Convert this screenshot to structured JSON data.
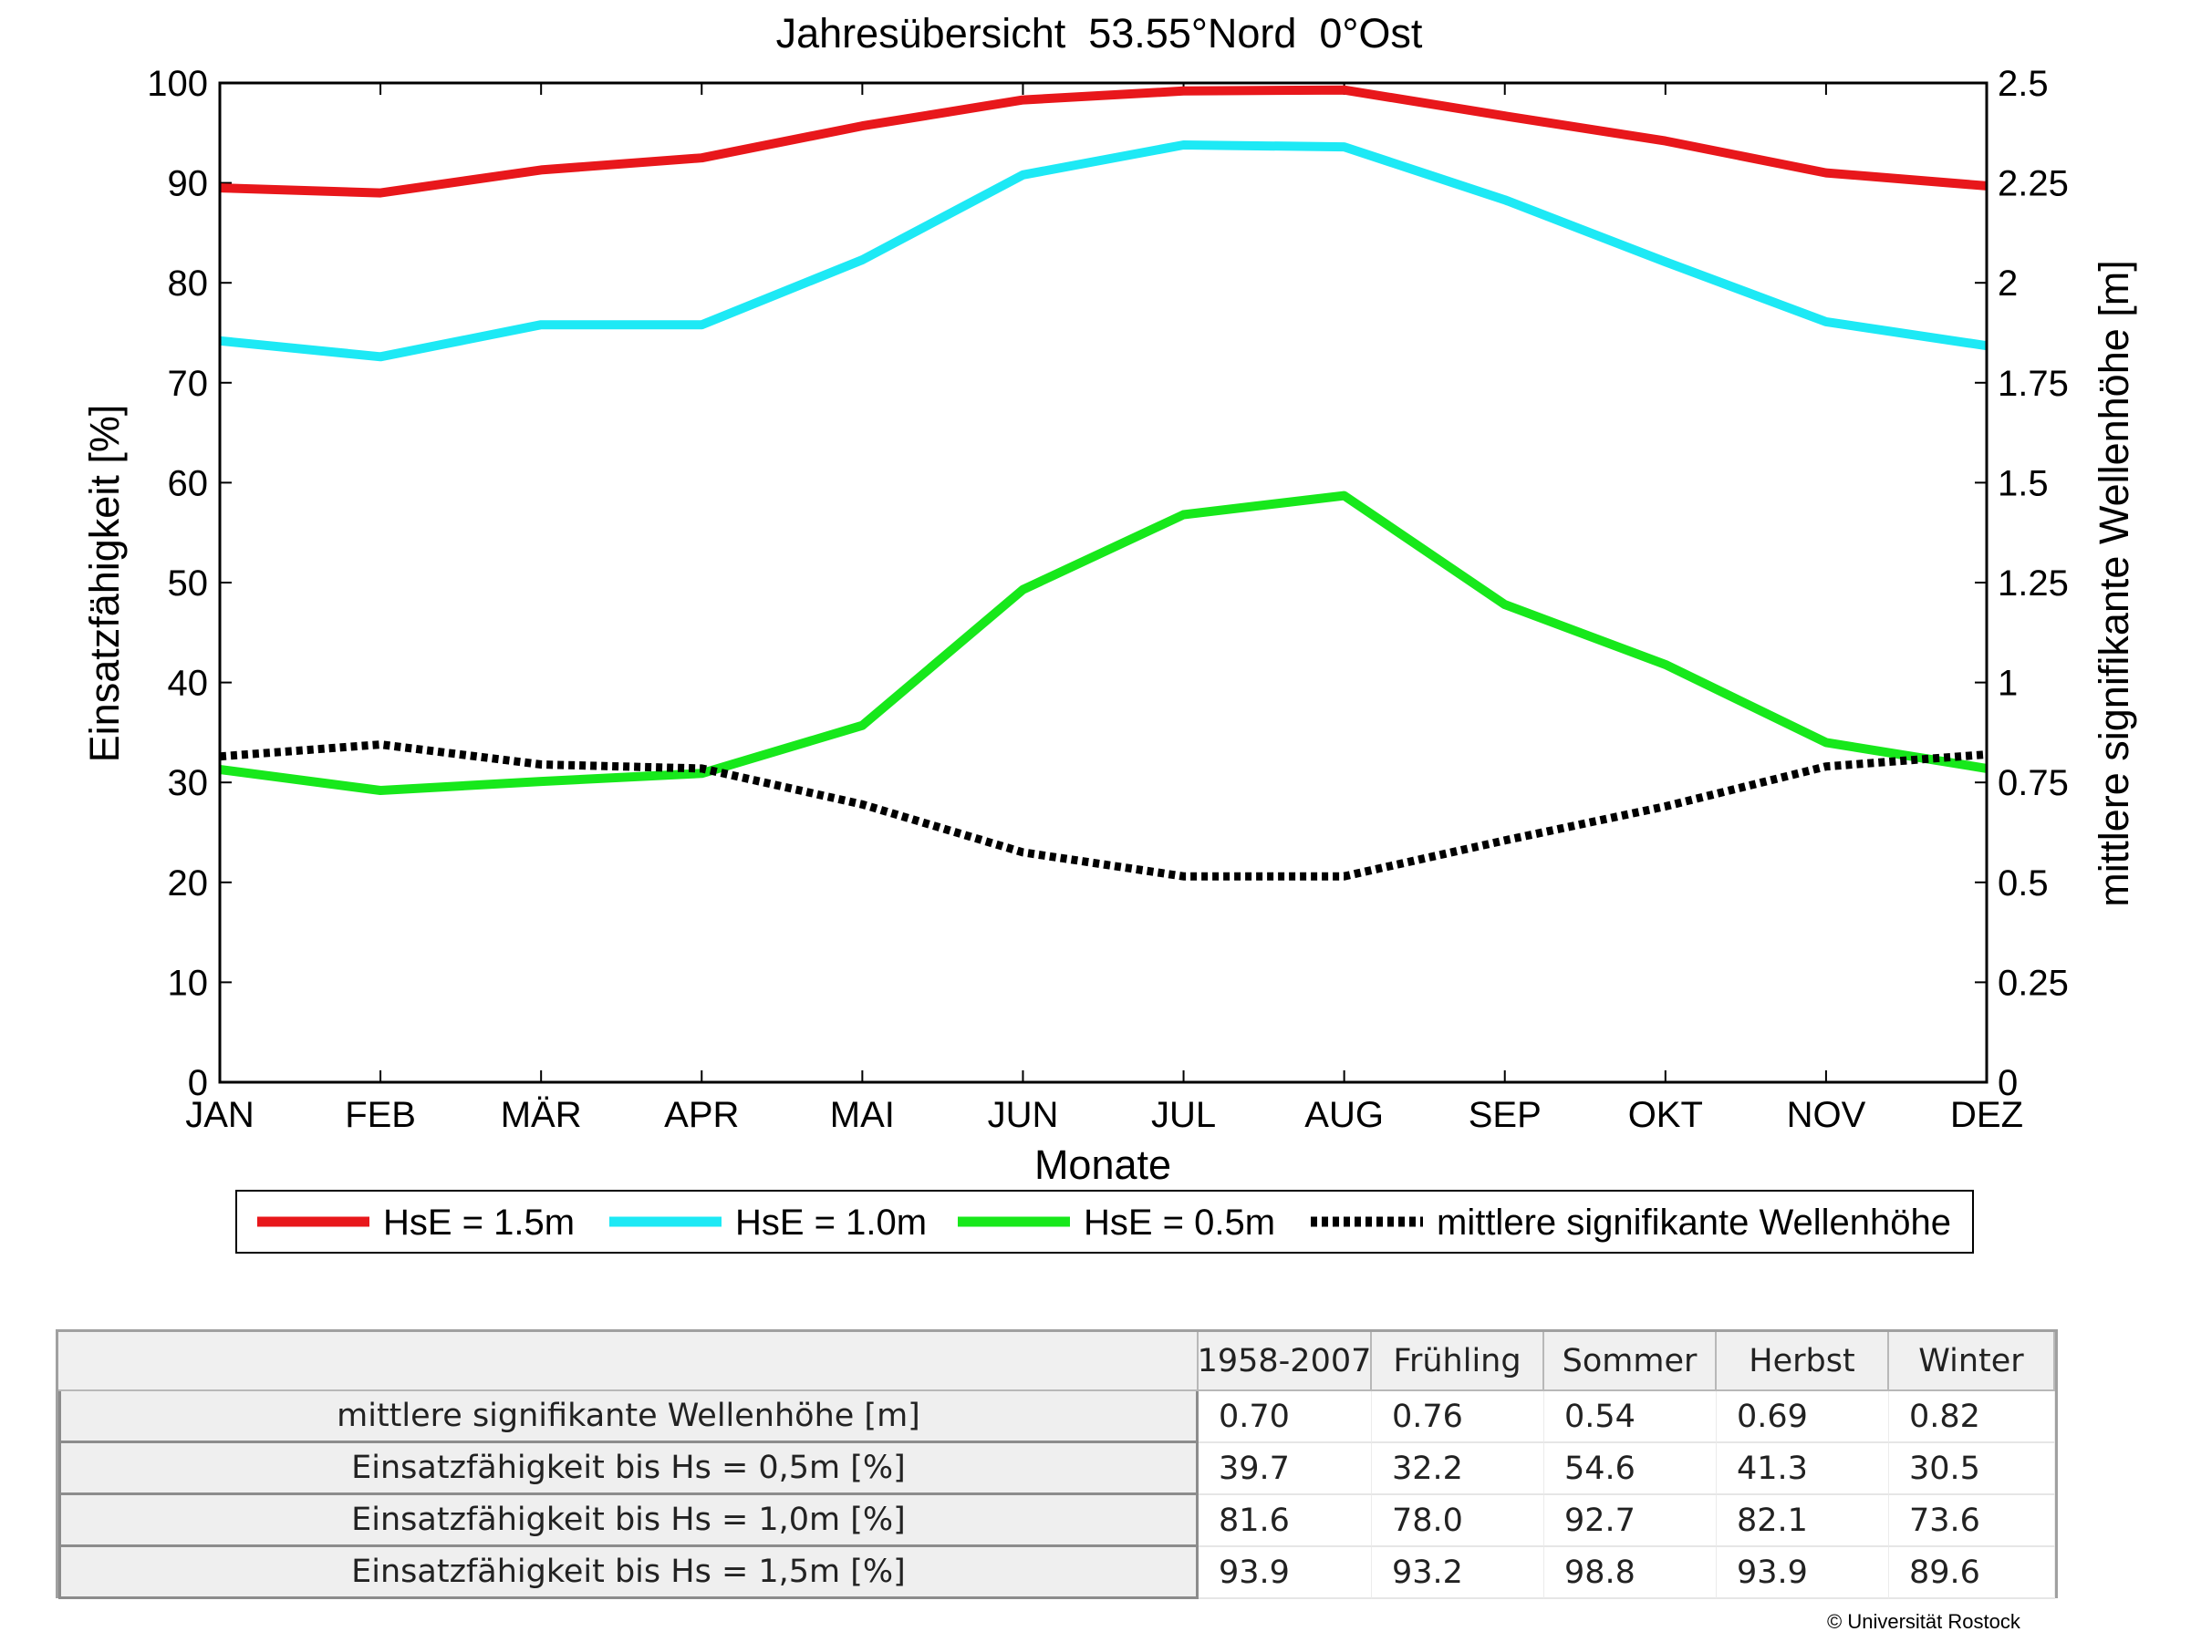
{
  "chart_data": {
    "type": "line",
    "title": "Jahresübersicht  53.55°Nord  0°Ost",
    "xlabel": "Monate",
    "ylabel_left": "Einsatzfähigkeit [%]",
    "ylabel_right": "mittlere signifikante Wellenhöhe [m]",
    "categories": [
      "JAN",
      "FEB",
      "MÄR",
      "APR",
      "MAI",
      "JUN",
      "JUL",
      "AUG",
      "SEP",
      "OKT",
      "NOV",
      "DEZ"
    ],
    "ylim_left": [
      0,
      100
    ],
    "yticks_left": [
      "0",
      "10",
      "20",
      "30",
      "40",
      "50",
      "60",
      "70",
      "80",
      "90",
      "100"
    ],
    "ylim_right": [
      0,
      2.5
    ],
    "yticks_right": [
      "0",
      "0.25",
      "0.5",
      "0.75",
      "1",
      "1.25",
      "1.5",
      "1.75",
      "2",
      "2.25",
      "2.5"
    ],
    "grid": false,
    "legend_position": "bottom",
    "series": [
      {
        "name": "HsE = 1.5m",
        "axis": "left",
        "color": "#e8171b",
        "style": "solid",
        "values": [
          89.5,
          89.0,
          91.3,
          92.5,
          95.7,
          98.3,
          99.2,
          99.3,
          96.7,
          94.2,
          91.0,
          89.7
        ]
      },
      {
        "name": "HsE = 1.0m",
        "axis": "left",
        "color": "#1de9f5",
        "style": "solid",
        "values": [
          74.2,
          72.6,
          75.8,
          75.8,
          82.3,
          90.8,
          93.8,
          93.6,
          88.3,
          82.1,
          76.1,
          73.7
        ]
      },
      {
        "name": "HsE = 0.5m",
        "axis": "left",
        "color": "#17e81b",
        "style": "solid",
        "values": [
          31.3,
          29.2,
          30.1,
          30.9,
          35.7,
          49.3,
          56.8,
          58.7,
          47.8,
          41.8,
          34.0,
          31.4
        ]
      },
      {
        "name": "mittlere signifikante Wellenhöhe",
        "axis": "right",
        "color": "#000000",
        "style": "dotted",
        "values": [
          0.815,
          0.845,
          0.795,
          0.785,
          0.695,
          0.575,
          0.515,
          0.515,
          0.605,
          0.69,
          0.79,
          0.82
        ]
      }
    ]
  },
  "table": {
    "columns": [
      "1958-2007",
      "Frühling",
      "Sommer",
      "Herbst",
      "Winter"
    ],
    "rows": [
      {
        "label": "mittlere signifikante Wellenhöhe [m]",
        "values": [
          "0.70",
          "0.76",
          "0.54",
          "0.69",
          "0.82"
        ]
      },
      {
        "label": "Einsatzfähigkeit bis Hs = 0,5m [%]",
        "values": [
          "39.7",
          "32.2",
          "54.6",
          "41.3",
          "30.5"
        ]
      },
      {
        "label": "Einsatzfähigkeit bis Hs = 1,0m [%]",
        "values": [
          "81.6",
          "78.0",
          "92.7",
          "82.1",
          "73.6"
        ]
      },
      {
        "label": "Einsatzfähigkeit bis Hs = 1,5m [%]",
        "values": [
          "93.9",
          "93.2",
          "98.8",
          "93.9",
          "89.6"
        ]
      }
    ]
  },
  "copyright": "© Universität Rostock"
}
